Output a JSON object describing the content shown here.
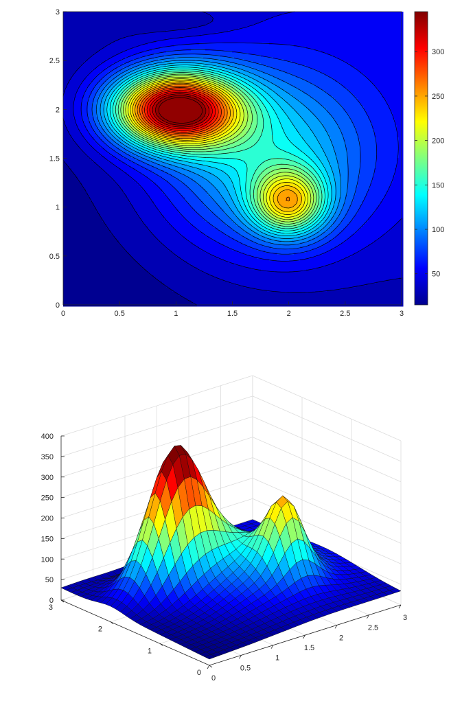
{
  "chart_data": [
    {
      "type": "contour",
      "xlim": [
        0,
        3
      ],
      "ylim": [
        0,
        3
      ],
      "x_ticks": [
        "0",
        "0.5",
        "1",
        "1.5",
        "2",
        "2.5",
        "3"
      ],
      "y_ticks": [
        "0",
        "0.5",
        "1",
        "1.5",
        "2",
        "2.5",
        "3"
      ],
      "colorbar": {
        "range": [
          15,
          345
        ],
        "ticks": [
          "50",
          "100",
          "150",
          "200",
          "250",
          "300"
        ],
        "colormap": "jet"
      },
      "peaks": [
        {
          "x": 1.0,
          "y": 2.0,
          "z": 345
        },
        {
          "x": 2.0,
          "y": 1.05,
          "z": 230
        }
      ],
      "grid": false
    },
    {
      "type": "surface",
      "xlim": [
        0,
        3
      ],
      "ylim": [
        0,
        3
      ],
      "zlim": [
        0,
        400
      ],
      "x_ticks": [
        "0",
        "0.5",
        "1",
        "1.5",
        "2",
        "2.5",
        "3"
      ],
      "y_ticks": [
        "0",
        "1",
        "2",
        "3"
      ],
      "z_ticks": [
        "0",
        "50",
        "100",
        "150",
        "200",
        "250",
        "300",
        "350",
        "400"
      ],
      "colormap": "jet",
      "grid": true
    }
  ]
}
